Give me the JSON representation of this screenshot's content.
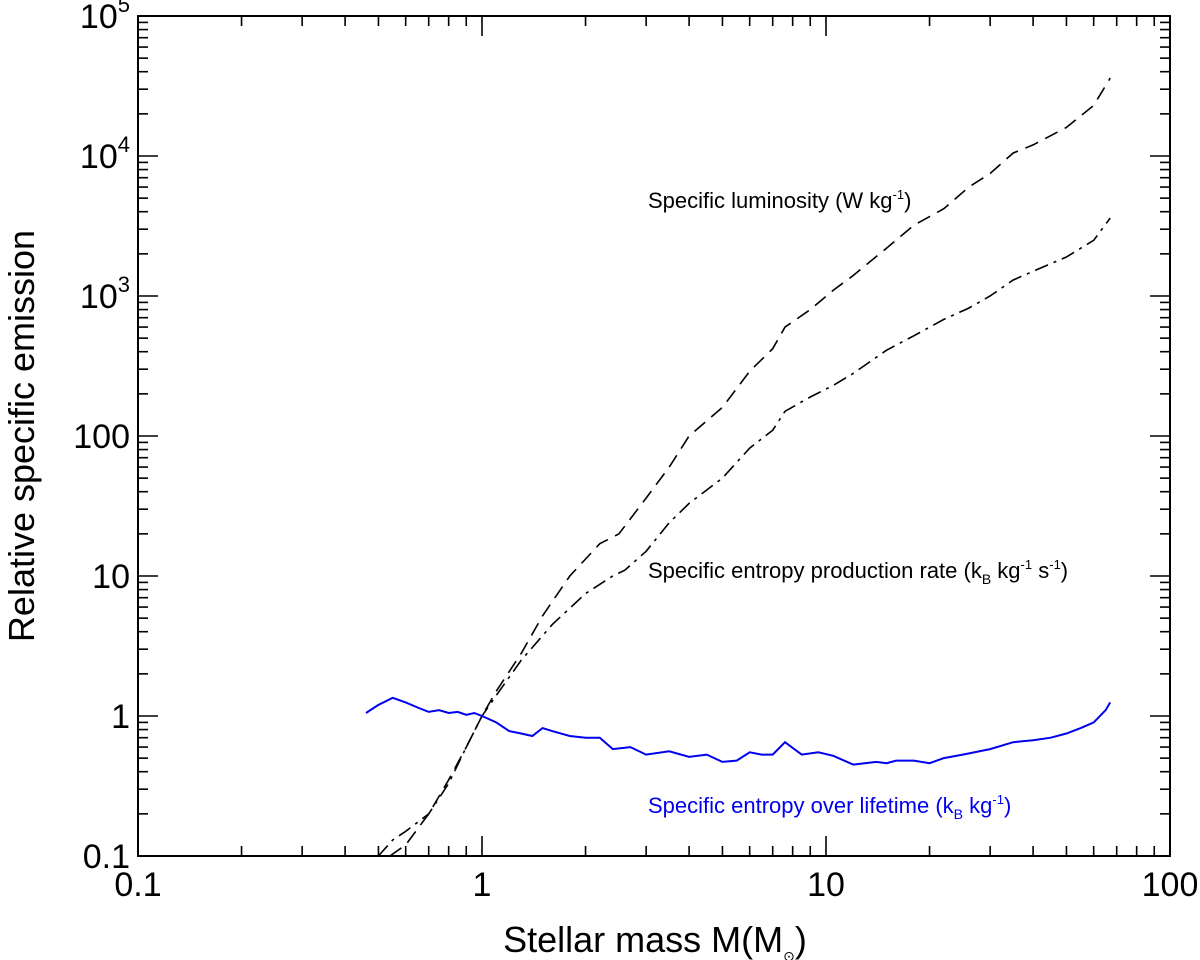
{
  "chart_data": {
    "type": "line",
    "title": "",
    "xscale": "log",
    "yscale": "log",
    "xlim": [
      0.1,
      100
    ],
    "ylim": [
      0.1,
      100000
    ],
    "xlabel": {
      "main": "Stellar mass M(M",
      "sub": "⊙",
      "end": ")"
    },
    "ylabel": "Relative specific emission",
    "xticks": [
      {
        "value": 0.1,
        "label": "0.1"
      },
      {
        "value": 1,
        "label": "1"
      },
      {
        "value": 10,
        "label": "10"
      },
      {
        "value": 100,
        "label": "100"
      }
    ],
    "yticks": [
      {
        "value": 0.1,
        "base": "0.1",
        "exp": ""
      },
      {
        "value": 1,
        "base": "1",
        "exp": ""
      },
      {
        "value": 10,
        "base": "10",
        "exp": ""
      },
      {
        "value": 100,
        "base": "100",
        "exp": ""
      },
      {
        "value": 1000,
        "base": "10",
        "exp": "3"
      },
      {
        "value": 10000,
        "base": "10",
        "exp": "4"
      },
      {
        "value": 100000,
        "base": "10",
        "exp": "5"
      }
    ],
    "series": [
      {
        "name": "Specific luminosity",
        "label_main": "Specific luminosity (W kg",
        "label_sup": "-1",
        "label_end": ")",
        "color": "#000000",
        "dash": "14 8",
        "x": [
          0.54,
          0.6,
          0.7,
          0.8,
          0.9,
          1.0,
          1.1,
          1.3,
          1.5,
          1.8,
          2.2,
          2.5,
          3.0,
          3.5,
          4.0,
          5.0,
          6.0,
          7.0,
          7.6,
          9.0,
          10.5,
          12.0,
          15.0,
          18.0,
          22.0,
          26.0,
          30.0,
          35.0,
          40.0,
          50.0,
          60.0,
          67.0
        ],
        "y": [
          0.1,
          0.12,
          0.2,
          0.35,
          0.6,
          1.0,
          1.5,
          2.8,
          5.2,
          10.0,
          17.0,
          20.0,
          36.0,
          60.0,
          100.0,
          160.0,
          290.0,
          420.0,
          600.0,
          800.0,
          1100.0,
          1400.0,
          2200.0,
          3200.0,
          4200.0,
          6000.0,
          7500.0,
          10500.0,
          12000.0,
          16000.0,
          23000.0,
          36000.0
        ]
      },
      {
        "name": "Specific entropy production rate",
        "label_main": "Specific entropy production rate (k",
        "label_sub": "B",
        "label_mid": " kg",
        "label_sup": "-1",
        "label_mid2": " s",
        "label_sup2": "-1",
        "label_end": ")",
        "color": "#000000",
        "dash": "14 6 3 6",
        "x": [
          0.5,
          0.55,
          0.6,
          0.7,
          0.8,
          0.9,
          1.0,
          1.1,
          1.3,
          1.6,
          2.0,
          2.4,
          2.6,
          3.0,
          3.5,
          4.0,
          5.0,
          6.0,
          7.0,
          7.6,
          9.0,
          10.5,
          12.0,
          15.0,
          18.0,
          22.0,
          26.0,
          30.0,
          35.0,
          40.0,
          50.0,
          60.0,
          67.0
        ],
        "y": [
          0.1,
          0.13,
          0.15,
          0.2,
          0.33,
          0.6,
          1.0,
          1.4,
          2.5,
          4.5,
          7.5,
          10.0,
          11.0,
          15.0,
          24.0,
          33.0,
          50.0,
          82.0,
          110.0,
          150.0,
          190.0,
          230.0,
          280.0,
          410.0,
          520.0,
          680.0,
          820.0,
          1000.0,
          1300.0,
          1500.0,
          1900.0,
          2500.0,
          3600.0
        ]
      },
      {
        "name": "Specific entropy over lifetime",
        "label_main": "Specific entropy over lifetime (k",
        "label_sub": "B",
        "label_mid": " kg",
        "label_sup": "-1",
        "label_end": ")",
        "color": "#0000ee",
        "dash": "",
        "x": [
          0.46,
          0.5,
          0.55,
          0.6,
          0.65,
          0.7,
          0.75,
          0.8,
          0.85,
          0.9,
          0.95,
          1.0,
          1.1,
          1.2,
          1.3,
          1.4,
          1.5,
          1.6,
          1.8,
          2.0,
          2.2,
          2.4,
          2.7,
          3.0,
          3.5,
          4.0,
          4.5,
          5.0,
          5.5,
          6.0,
          6.5,
          7.0,
          7.6,
          8.5,
          9.5,
          10.5,
          12.0,
          14.0,
          15.0,
          16.0,
          18.0,
          20.0,
          22.0,
          25.0,
          30.0,
          35.0,
          40.0,
          45.0,
          50.0,
          55.0,
          60.0,
          65.0,
          67.0
        ],
        "y": [
          1.05,
          1.2,
          1.35,
          1.25,
          1.15,
          1.07,
          1.1,
          1.05,
          1.07,
          1.02,
          1.05,
          1.0,
          0.9,
          0.78,
          0.75,
          0.72,
          0.82,
          0.78,
          0.72,
          0.7,
          0.7,
          0.58,
          0.6,
          0.53,
          0.56,
          0.51,
          0.53,
          0.47,
          0.48,
          0.55,
          0.53,
          0.53,
          0.65,
          0.53,
          0.55,
          0.52,
          0.45,
          0.47,
          0.46,
          0.48,
          0.48,
          0.46,
          0.5,
          0.53,
          0.58,
          0.65,
          0.67,
          0.7,
          0.75,
          0.82,
          0.9,
          1.1,
          1.25
        ]
      }
    ],
    "legend": "annotations next to each curve"
  }
}
